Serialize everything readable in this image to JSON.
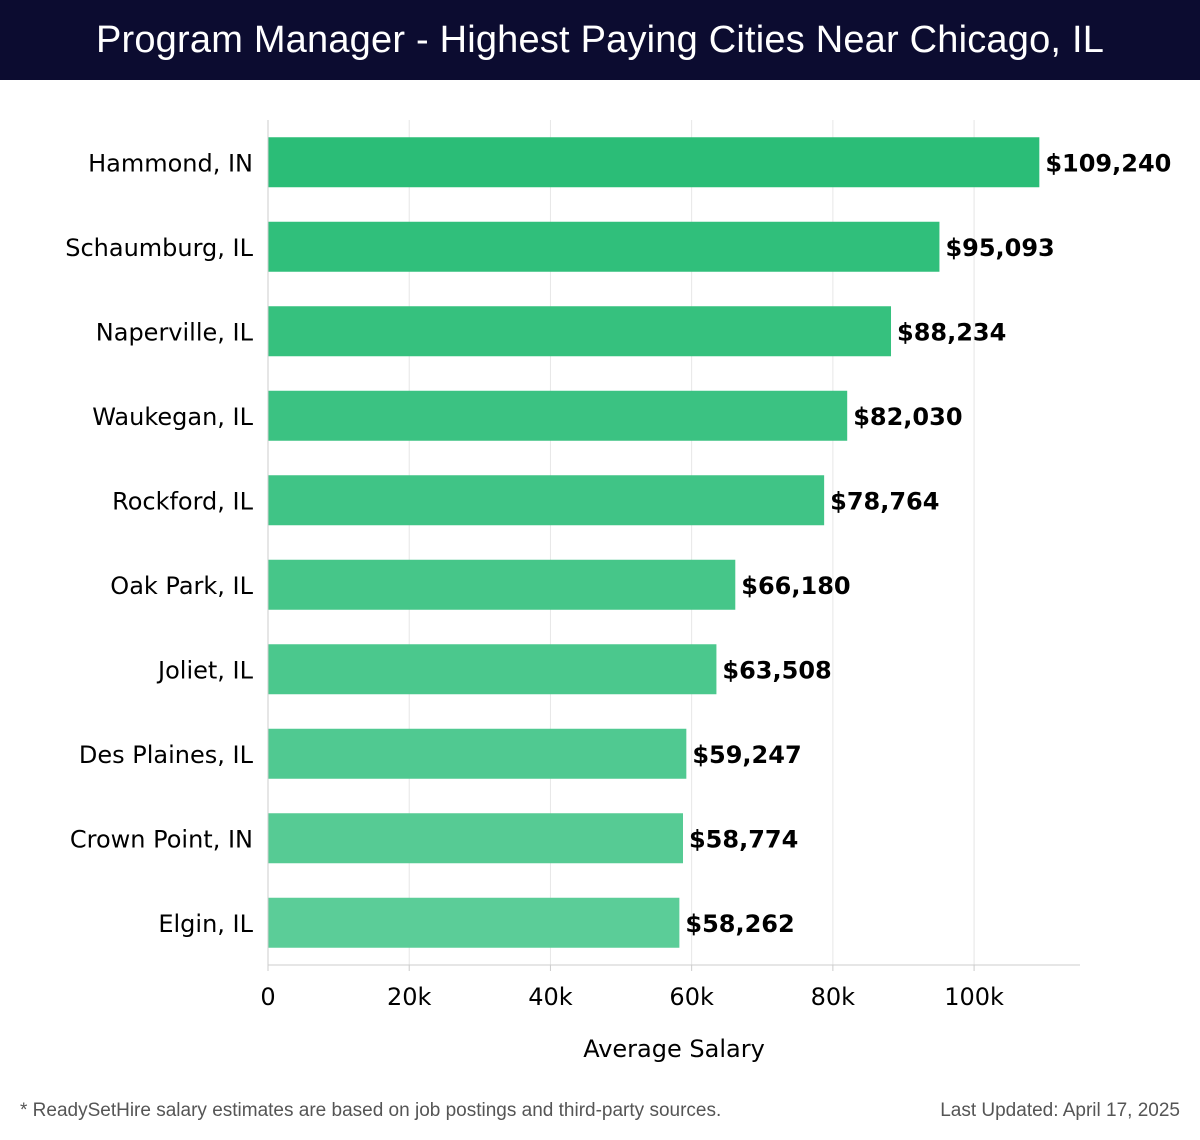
{
  "header": {
    "title": "Program Manager - Highest Paying Cities Near Chicago, IL"
  },
  "chart_data": {
    "type": "bar",
    "orientation": "horizontal",
    "categories": [
      "Hammond, IN",
      "Schaumburg, IL",
      "Naperville, IL",
      "Waukegan, IL",
      "Rockford, IL",
      "Oak Park, IL",
      "Joliet, IL",
      "Des Plaines, IL",
      "Crown Point, IN",
      "Elgin, IL"
    ],
    "values": [
      109240,
      95093,
      88234,
      82030,
      78764,
      66180,
      63508,
      59247,
      58774,
      58262
    ],
    "value_labels": [
      "$109,240",
      "$95,093",
      "$88,234",
      "$82,030",
      "$78,764",
      "$66,180",
      "$63,508",
      "$59,247",
      "$58,774",
      "$58,262"
    ],
    "xlabel": "Average Salary",
    "ylabel": "",
    "xlim": [
      0,
      115000
    ],
    "xticks": [
      0,
      20000,
      40000,
      60000,
      80000,
      100000
    ],
    "xtick_labels": [
      "0",
      "20k",
      "40k",
      "60k",
      "80k",
      "100k"
    ],
    "grid": "vertical",
    "bar_color_start": "#2bbd77",
    "bar_color_end": "#5bcd98"
  },
  "footer": {
    "note": "* ReadySetHire salary estimates are based on job postings and third-party sources.",
    "updated": "Last Updated: April 17, 2025"
  }
}
